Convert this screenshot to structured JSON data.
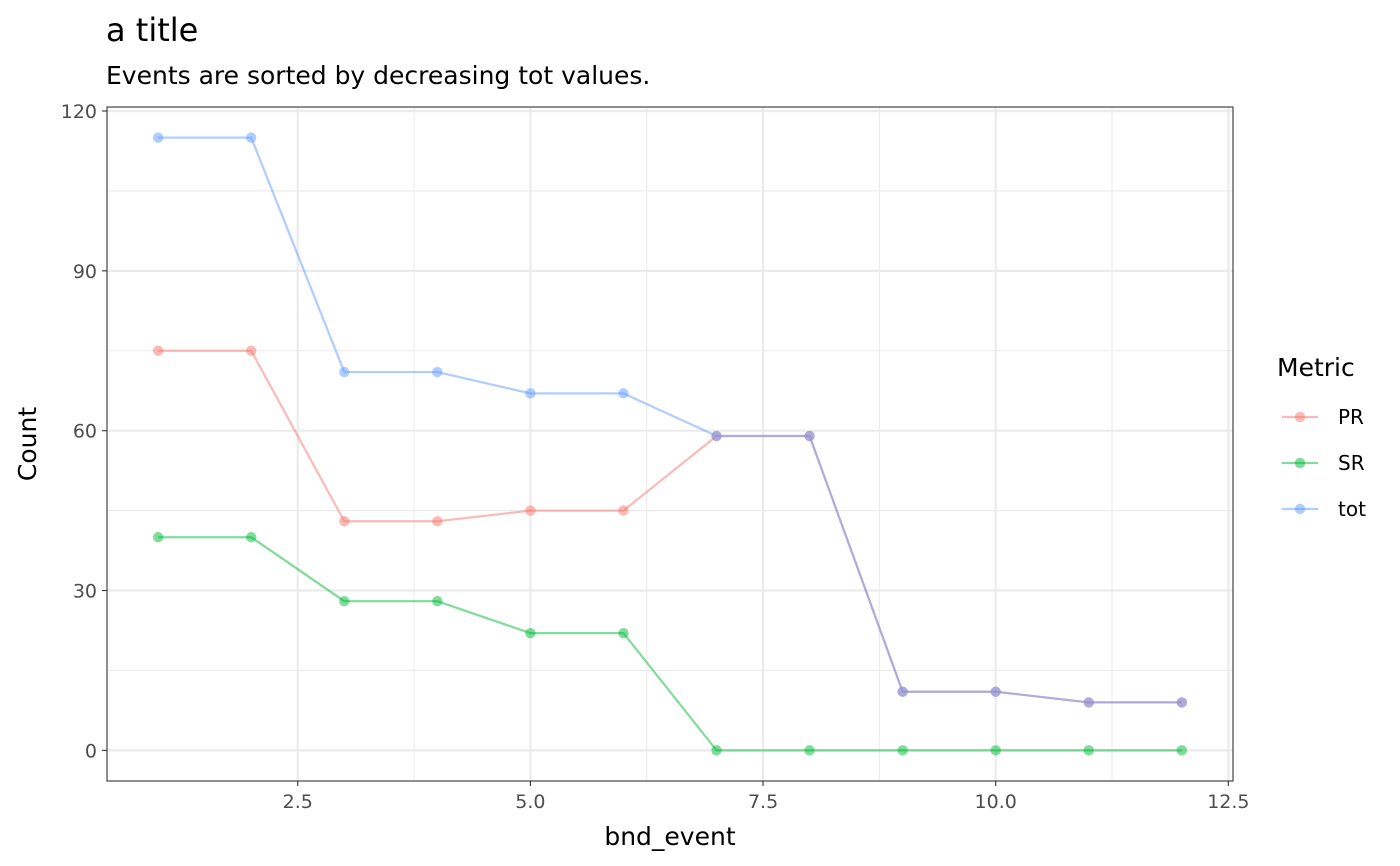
{
  "chart_data": {
    "type": "line",
    "title": "a title",
    "subtitle": "Events are sorted by decreasing tot values.",
    "xlabel": "bnd_event",
    "ylabel": "Count",
    "xlim": [
      0.45,
      12.55
    ],
    "ylim": [
      -5.75,
      120.75
    ],
    "x_ticks": [
      2.5,
      5.0,
      7.5,
      10.0,
      12.5
    ],
    "x_tick_labels": [
      "2.5",
      "5.0",
      "7.5",
      "10.0",
      "12.5"
    ],
    "y_ticks": [
      0,
      30,
      60,
      90,
      120
    ],
    "y_tick_labels": [
      "0",
      "30",
      "60",
      "90",
      "120"
    ],
    "grid": true,
    "legend": {
      "title": "Metric",
      "position": "right"
    },
    "x": [
      1,
      2,
      3,
      4,
      5,
      6,
      7,
      8,
      9,
      10,
      11,
      12
    ],
    "series": [
      {
        "name": "PR",
        "color": "#F8766D",
        "values": [
          75,
          75,
          43,
          43,
          45,
          45,
          59,
          59,
          11,
          11,
          9,
          9
        ]
      },
      {
        "name": "SR",
        "color": "#00BA38",
        "values": [
          40,
          40,
          28,
          28,
          22,
          22,
          0,
          0,
          0,
          0,
          0,
          0
        ]
      },
      {
        "name": "tot",
        "color": "#619CFF",
        "values": [
          115,
          115,
          71,
          71,
          67,
          67,
          59,
          59,
          11,
          11,
          9,
          9
        ]
      }
    ]
  }
}
